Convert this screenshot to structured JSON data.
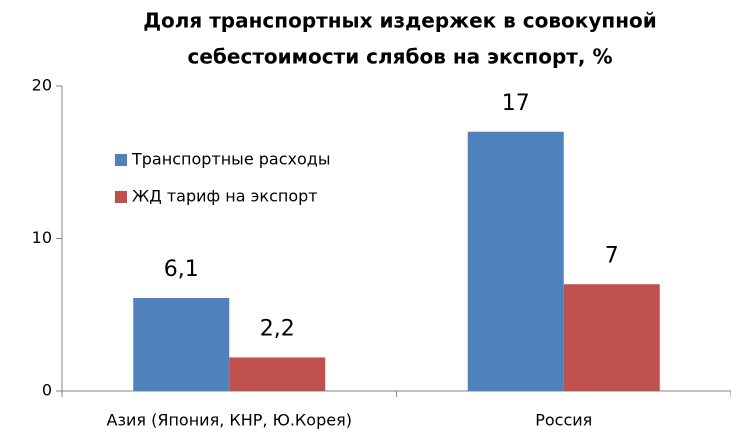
{
  "chart_data": {
    "type": "bar",
    "title": [
      "Доля транспортных издержек в совокупной",
      "себестоимости слябов на экспорт, %"
    ],
    "categories": [
      "Азия (Япония, КНР, Ю.Корея)",
      "Россия"
    ],
    "series": [
      {
        "name": "Транспортные расходы",
        "color": "#4f81bd",
        "values": [
          6.1,
          17
        ],
        "value_labels": [
          "6,1",
          "17"
        ]
      },
      {
        "name": "ЖД тариф на экспорт",
        "color": "#c0504d",
        "values": [
          2.2,
          7
        ],
        "value_labels": [
          "2,2",
          "7"
        ]
      }
    ],
    "ylim": [
      0,
      20
    ],
    "yticks": [
      0,
      10,
      20
    ],
    "grid": false,
    "legend": "upper left"
  }
}
